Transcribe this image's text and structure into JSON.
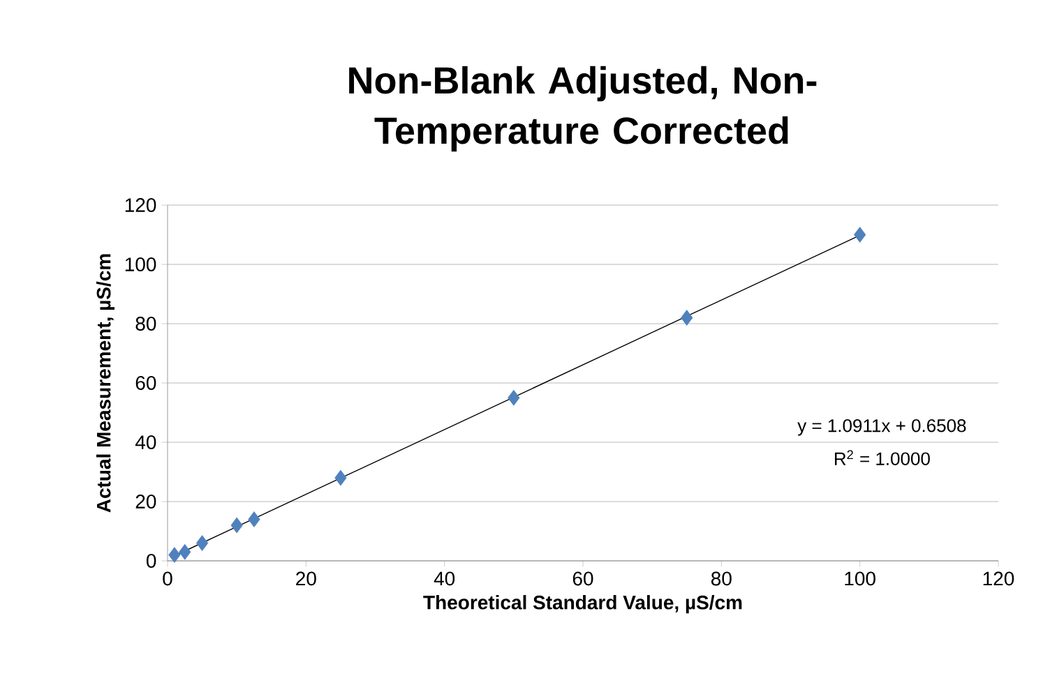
{
  "chart_data": {
    "type": "scatter",
    "title": "Non-Blank Adjusted, Non-Temperature Corrected",
    "xlabel": "Theoretical Standard Value, µS/cm",
    "ylabel": "Actual Measurement, µS/cm",
    "xlim": [
      0,
      120
    ],
    "ylim": [
      0,
      120
    ],
    "xticks": [
      0,
      20,
      40,
      60,
      80,
      100,
      120
    ],
    "yticks": [
      0,
      20,
      40,
      60,
      80,
      100,
      120
    ],
    "grid": "y",
    "series": [
      {
        "color": "#4f81bd",
        "marker": "diamond",
        "x": [
          1,
          2.5,
          5,
          10,
          12.5,
          25,
          50,
          75,
          100
        ],
        "values": [
          2,
          3,
          6,
          12,
          14,
          28,
          55,
          82,
          110
        ]
      },
      {
        "type": "line",
        "color": "#000000",
        "marker": "none",
        "line_style": "solid",
        "x": [
          1,
          100
        ],
        "values": [
          1.7,
          109.8
        ]
      }
    ],
    "annotations": [
      "y = 1.0911x + 0.6508",
      "R$^{2}$ = 1.0000"
    ]
  }
}
